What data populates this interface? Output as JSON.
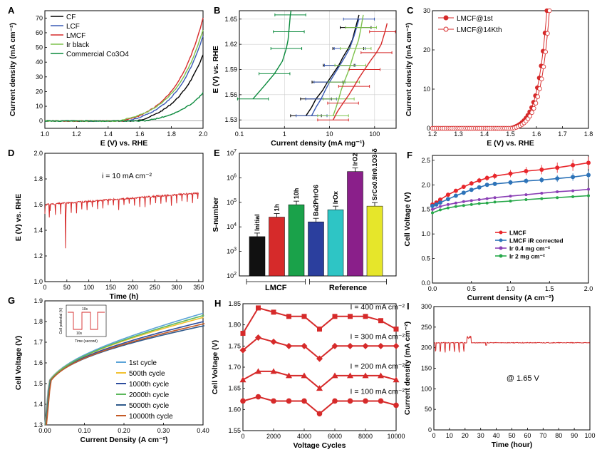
{
  "figure": {
    "panels": [
      {
        "id": "A",
        "letter": "A",
        "xlabel": "E (V) vs. RHE",
        "ylabel": "Current density (mA cm⁻²)"
      },
      {
        "id": "B",
        "letter": "B",
        "xlabel": "Current density (mA mg⁻¹)",
        "ylabel": "E (V) vs. RHE"
      },
      {
        "id": "C",
        "letter": "C",
        "xlabel": "E (V) vs. RHE",
        "ylabel": "Current density (mA cm⁻²)"
      },
      {
        "id": "D",
        "letter": "D",
        "xlabel": "Time (h)",
        "ylabel": "E (V) vs. RHE",
        "annotation": "i = 10 mA cm⁻²"
      },
      {
        "id": "E",
        "letter": "E",
        "xlabel": "",
        "ylabel": "S-number",
        "groups": [
          "LMCF",
          "Reference"
        ]
      },
      {
        "id": "F",
        "letter": "F",
        "xlabel": "Current density (A cm⁻²)",
        "ylabel": "Cell Voltage (V)"
      },
      {
        "id": "G",
        "letter": "G",
        "xlabel": "Current Density (A cm⁻²)",
        "ylabel": "Cell Voltage (V)",
        "inset": {
          "ylabel": "Cell potential (V)",
          "xlabel": "Time (second)",
          "label_top": "10s",
          "label_bottom": "10s"
        }
      },
      {
        "id": "H",
        "letter": "H",
        "xlabel": "Voltage Cycles",
        "ylabel": "Cell Voltage (V)"
      },
      {
        "id": "I",
        "letter": "I",
        "xlabel": "Time (hour)",
        "ylabel": "Current density (mA cm⁻²)",
        "annotation": "@ 1.65 V"
      }
    ]
  },
  "chart_data": [
    {
      "panel": "A",
      "type": "line",
      "xlim": [
        1.0,
        2.0
      ],
      "ylim": [
        -5,
        75
      ],
      "xticks": [
        1.0,
        1.2,
        1.4,
        1.6,
        1.8,
        2.0
      ],
      "yticks": [
        0,
        10,
        20,
        30,
        40,
        50,
        60,
        70
      ],
      "series": [
        {
          "name": "CF",
          "color": "#000000",
          "onset": 1.58,
          "end": 45
        },
        {
          "name": "LCF",
          "color": "#3a5bb5",
          "onset": 1.52,
          "end": 58
        },
        {
          "name": "LMCF",
          "color": "#d62a2a",
          "onset": 1.49,
          "end": 70
        },
        {
          "name": "Ir black",
          "color": "#7dc24b",
          "onset": 1.45,
          "end": 62
        },
        {
          "name": "Commercial Co3O4",
          "color": "#0a8a3c",
          "onset": 1.62,
          "end": 19
        }
      ]
    },
    {
      "panel": "B",
      "type": "line",
      "xscale": "log",
      "xlim": [
        0.1,
        300
      ],
      "ylim": [
        1.52,
        1.66
      ],
      "xticks": [
        0.1,
        1,
        10,
        100
      ],
      "yticks": [
        1.53,
        1.56,
        1.59,
        1.62,
        1.65
      ],
      "series": [
        {
          "name": "Commercial Co3O4",
          "color": "#0a8a3c",
          "x": [
            0.2,
            0.35,
            0.6,
            0.9,
            1.1,
            1.2,
            1.25,
            1.3,
            1.35,
            1.4
          ],
          "y": [
            1.555,
            1.57,
            1.585,
            1.6,
            1.615,
            1.625,
            1.635,
            1.645,
            1.655,
            1.66
          ]
        },
        {
          "name": "CF",
          "color": "#000000",
          "x": [
            3,
            4,
            5,
            7,
            9,
            12,
            16,
            20,
            26,
            32,
            38,
            45
          ],
          "y": [
            1.535,
            1.545,
            1.555,
            1.565,
            1.575,
            1.585,
            1.595,
            1.605,
            1.615,
            1.625,
            1.64,
            1.655
          ]
        },
        {
          "name": "LCF",
          "color": "#3a5bb5",
          "x": [
            4,
            5,
            6.5,
            8,
            10,
            13,
            17,
            22,
            28,
            35,
            45
          ],
          "y": [
            1.535,
            1.545,
            1.555,
            1.565,
            1.575,
            1.585,
            1.595,
            1.605,
            1.615,
            1.63,
            1.65
          ]
        },
        {
          "name": "Ir black",
          "color": "#7dc24b",
          "x": [
            12,
            14,
            16,
            18,
            21,
            25,
            29,
            33,
            38,
            44,
            50,
            56
          ],
          "y": [
            1.535,
            1.545,
            1.555,
            1.565,
            1.575,
            1.585,
            1.595,
            1.605,
            1.615,
            1.625,
            1.64,
            1.655
          ]
        },
        {
          "name": "LMCF",
          "color": "#d62a2a",
          "x": [
            12,
            15,
            20,
            27,
            35,
            45,
            60,
            80,
            110,
            140,
            170,
            190
          ],
          "y": [
            1.53,
            1.54,
            1.55,
            1.56,
            1.57,
            1.58,
            1.59,
            1.6,
            1.61,
            1.62,
            1.635,
            1.645
          ]
        }
      ]
    },
    {
      "panel": "C",
      "type": "line",
      "xlim": [
        1.2,
        1.8
      ],
      "ylim": [
        0,
        30
      ],
      "xticks": [
        1.2,
        1.3,
        1.4,
        1.5,
        1.6,
        1.7,
        1.8
      ],
      "yticks": [
        0,
        10,
        20,
        30
      ],
      "series": [
        {
          "name": "LMCF@1st",
          "color": "#d62a2a",
          "onset": 1.5,
          "end_x": 1.64
        },
        {
          "name": "LMCF@14Kth",
          "color": "#d62a2a",
          "onset": 1.51,
          "end_x": 1.65
        }
      ]
    },
    {
      "panel": "D",
      "type": "line",
      "xlim": [
        0,
        360
      ],
      "ylim": [
        1.0,
        2.0
      ],
      "xticks": [
        0,
        50,
        100,
        150,
        200,
        250,
        300,
        350
      ],
      "yticks": [
        1.0,
        1.2,
        1.4,
        1.6,
        1.8,
        2.0
      ],
      "series": [
        {
          "name": "LMCF",
          "color": "#d62a2a",
          "start": 1.6,
          "end": 1.69,
          "duration": 350
        }
      ]
    },
    {
      "panel": "E",
      "type": "bar",
      "yscale": "log",
      "ylim": [
        100,
        10000000
      ],
      "yticks": [
        100,
        1000,
        10000,
        100000,
        1000000,
        10000000
      ],
      "categories": [
        "Initial",
        "1h",
        "10h",
        "Ba2PrIrO6",
        "IrOx",
        "IrO2",
        "SrCo0.9Ir0.1O3-δ"
      ],
      "values": [
        4000,
        25000,
        80000,
        16000,
        50000,
        1800000,
        70000
      ],
      "colors": [
        "#111111",
        "#d62a2a",
        "#1aa24a",
        "#2b3f9e",
        "#2ec5c5",
        "#8a1f8a",
        "#e6e62a"
      ]
    },
    {
      "panel": "F",
      "type": "line",
      "xlim": [
        0,
        2.0
      ],
      "ylim": [
        0,
        2.6
      ],
      "xticks": [
        0.0,
        0.5,
        1.0,
        1.5,
        2.0
      ],
      "yticks": [
        0.0,
        0.5,
        1.0,
        1.5,
        2.0,
        2.5
      ],
      "series": [
        {
          "name": "LMCF",
          "color": "#e8262b",
          "x": [
            0,
            0.05,
            0.1,
            0.2,
            0.3,
            0.4,
            0.5,
            0.6,
            0.7,
            0.8,
            1.0,
            1.2,
            1.4,
            1.6,
            1.8,
            2.0
          ],
          "y": [
            1.6,
            1.64,
            1.7,
            1.8,
            1.88,
            1.96,
            2.03,
            2.09,
            2.14,
            2.18,
            2.23,
            2.28,
            2.31,
            2.35,
            2.4,
            2.45
          ]
        },
        {
          "name": "LMCF iR corrected",
          "color": "#2d73b8",
          "x": [
            0,
            0.05,
            0.1,
            0.2,
            0.3,
            0.4,
            0.5,
            0.6,
            0.7,
            0.8,
            1.0,
            1.2,
            1.4,
            1.6,
            1.8,
            2.0
          ],
          "y": [
            1.57,
            1.6,
            1.64,
            1.71,
            1.78,
            1.84,
            1.9,
            1.95,
            2.0,
            2.02,
            2.05,
            2.08,
            2.1,
            2.13,
            2.16,
            2.2
          ]
        },
        {
          "name": "Ir 0.4 mg cm⁻²",
          "color": "#8a3fb5",
          "x": [
            0,
            0.1,
            0.2,
            0.3,
            0.4,
            0.5,
            0.6,
            0.7,
            0.8,
            1.0,
            1.2,
            1.4,
            1.6,
            1.8,
            2.0
          ],
          "y": [
            1.5,
            1.56,
            1.6,
            1.63,
            1.66,
            1.68,
            1.7,
            1.72,
            1.74,
            1.77,
            1.8,
            1.83,
            1.86,
            1.88,
            1.91
          ]
        },
        {
          "name": "Ir 2 mg cm⁻²",
          "color": "#27a84a",
          "x": [
            0,
            0.1,
            0.2,
            0.3,
            0.4,
            0.5,
            0.6,
            0.7,
            0.8,
            1.0,
            1.2,
            1.4,
            1.6,
            1.8,
            2.0
          ],
          "y": [
            1.43,
            1.49,
            1.53,
            1.56,
            1.58,
            1.6,
            1.62,
            1.63,
            1.65,
            1.67,
            1.7,
            1.72,
            1.74,
            1.76,
            1.78
          ]
        }
      ]
    },
    {
      "panel": "G",
      "type": "line",
      "xlim": [
        0,
        0.4
      ],
      "ylim": [
        1.3,
        1.9
      ],
      "xticks": [
        0.0,
        0.1,
        0.2,
        0.3,
        0.4
      ],
      "yticks": [
        1.3,
        1.4,
        1.5,
        1.6,
        1.7,
        1.8,
        1.9
      ],
      "series": [
        {
          "name": "1st cycle",
          "color": "#5ba4d8",
          "end": 1.84
        },
        {
          "name": "500th cycle",
          "color": "#f2c231",
          "end": 1.82
        },
        {
          "name": "1000th cycle",
          "color": "#2e4e9e",
          "end": 1.8
        },
        {
          "name": "2000th cycle",
          "color": "#5cb85c",
          "end": 1.83
        },
        {
          "name": "5000th cycle",
          "color": "#2f5a8c",
          "end": 1.78
        },
        {
          "name": "10000th cycle",
          "color": "#c45a26",
          "end": 1.79
        }
      ]
    },
    {
      "panel": "H",
      "type": "line",
      "xlim": [
        0,
        10000
      ],
      "ylim": [
        1.55,
        1.85
      ],
      "xticks": [
        0,
        2000,
        4000,
        6000,
        8000,
        10000
      ],
      "yticks": [
        1.55,
        1.6,
        1.65,
        1.7,
        1.75,
        1.8,
        1.85
      ],
      "x": [
        0,
        1000,
        2000,
        3000,
        4000,
        5000,
        6000,
        7000,
        8000,
        9000,
        10000
      ],
      "series": [
        {
          "name": "I = 400 mA cm⁻²",
          "marker": "square",
          "y": [
            1.78,
            1.84,
            1.83,
            1.82,
            1.82,
            1.79,
            1.82,
            1.82,
            1.82,
            1.81,
            1.79
          ]
        },
        {
          "name": "I = 300 mA cm⁻²",
          "marker": "diamond",
          "y": [
            1.74,
            1.77,
            1.76,
            1.75,
            1.75,
            1.72,
            1.75,
            1.75,
            1.75,
            1.75,
            1.75
          ]
        },
        {
          "name": "I = 200 mA cm⁻²",
          "marker": "triangle",
          "y": [
            1.67,
            1.69,
            1.69,
            1.68,
            1.68,
            1.65,
            1.68,
            1.68,
            1.68,
            1.68,
            1.67
          ]
        },
        {
          "name": "I = 100 mA cm⁻²",
          "marker": "circle",
          "y": [
            1.62,
            1.63,
            1.62,
            1.62,
            1.62,
            1.59,
            1.62,
            1.62,
            1.62,
            1.62,
            1.61
          ]
        }
      ]
    },
    {
      "panel": "I",
      "type": "line",
      "xlim": [
        0,
        100
      ],
      "ylim": [
        0,
        300
      ],
      "xticks": [
        0,
        10,
        20,
        30,
        40,
        50,
        60,
        70,
        80,
        90,
        100
      ],
      "yticks": [
        0,
        50,
        100,
        150,
        200,
        250,
        300
      ],
      "series": [
        {
          "name": "LMCF",
          "color": "#d62a2a",
          "level": 212
        }
      ]
    }
  ]
}
